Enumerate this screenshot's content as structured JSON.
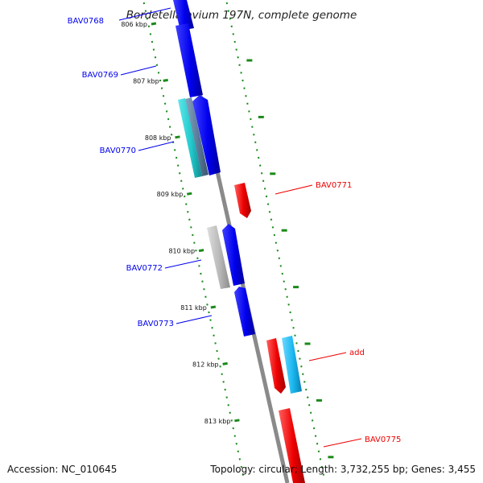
{
  "title": "Bordetella avium 197N, complete genome",
  "footer": {
    "accession": "Accession: NC_010645",
    "summary": "Topology: circular; Length: 3,732,255 bp; Genes: 3,455"
  },
  "ticks": [
    {
      "label": "806 kbp",
      "kbp": 806
    },
    {
      "label": "807 kbp",
      "kbp": 807
    },
    {
      "label": "808 kbp",
      "kbp": 808
    },
    {
      "label": "809 kbp",
      "kbp": 809
    },
    {
      "label": "810 kbp",
      "kbp": 810
    },
    {
      "label": "811 kbp",
      "kbp": 811
    },
    {
      "label": "812 kbp",
      "kbp": 812
    },
    {
      "label": "813 kbp",
      "kbp": 813
    }
  ],
  "genes": [
    {
      "label": "BAV0768",
      "strand": "reverse",
      "color": "#0000ee"
    },
    {
      "label": "BAV0769",
      "strand": "reverse",
      "color": "#0000ee"
    },
    {
      "label": "BAV0770",
      "strand": "reverse",
      "color": "#0000ee"
    },
    {
      "label": "BAV0771",
      "strand": "forward",
      "color": "#ee0000"
    },
    {
      "label": "BAV0772",
      "strand": "reverse",
      "color": "#0000ee"
    },
    {
      "label": "BAV0773",
      "strand": "reverse",
      "color": "#0000ee"
    },
    {
      "label": "add",
      "strand": "forward",
      "color": "#ee0000"
    },
    {
      "label": "BAV0775",
      "strand": "forward",
      "color": "#ee0000"
    }
  ],
  "colors": {
    "backbone": "#8a8a8a",
    "tick_track": "#1a8a1a",
    "reverse_cds": "#0000ee",
    "forward_cds": "#ee0000",
    "cyan_feature": "#22c8cc",
    "gray_feature": "#b8b8b8",
    "light_blue_feature": "#1ab8f0",
    "steel_feature": "#5a7a9a"
  }
}
